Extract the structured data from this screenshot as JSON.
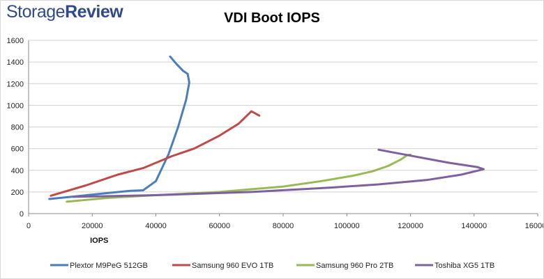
{
  "brand": {
    "name_regular": "Storage",
    "name_bold": "Review"
  },
  "chart_data": {
    "type": "line",
    "title": "VDI Boot IOPS",
    "xlabel": "IOPS",
    "ylabel": "",
    "xlim": [
      0,
      160000
    ],
    "ylim": [
      0,
      1600
    ],
    "x_ticks": [
      0,
      20000,
      40000,
      60000,
      80000,
      100000,
      120000,
      140000,
      160000
    ],
    "y_ticks": [
      0,
      200,
      400,
      600,
      800,
      1000,
      1200,
      1400,
      1600
    ],
    "grid": "horizontal",
    "legend": "bottom",
    "series": [
      {
        "name": "Plextor M9PeG 512GB",
        "color": "#4a7ebb",
        "points": [
          [
            6500,
            135
          ],
          [
            15000,
            160
          ],
          [
            25000,
            190
          ],
          [
            32000,
            210
          ],
          [
            36000,
            215
          ],
          [
            40000,
            300
          ],
          [
            44000,
            550
          ],
          [
            47000,
            800
          ],
          [
            49500,
            1050
          ],
          [
            50500,
            1210
          ],
          [
            50000,
            1290
          ],
          [
            48500,
            1320
          ],
          [
            46500,
            1380
          ],
          [
            44500,
            1450
          ]
        ]
      },
      {
        "name": "Samsung 960 EVO 1TB",
        "color": "#be4b48",
        "points": [
          [
            7000,
            165
          ],
          [
            18000,
            260
          ],
          [
            28000,
            360
          ],
          [
            36000,
            420
          ],
          [
            45000,
            530
          ],
          [
            52000,
            600
          ],
          [
            60000,
            720
          ],
          [
            66000,
            830
          ],
          [
            70000,
            945
          ],
          [
            72500,
            905
          ]
        ]
      },
      {
        "name": "Samsung 960 Pro 2TB",
        "color": "#98b954",
        "points": [
          [
            12000,
            110
          ],
          [
            25000,
            145
          ],
          [
            40000,
            170
          ],
          [
            60000,
            200
          ],
          [
            80000,
            250
          ],
          [
            92000,
            300
          ],
          [
            102000,
            350
          ],
          [
            108000,
            390
          ],
          [
            113000,
            440
          ],
          [
            117000,
            500
          ],
          [
            119000,
            540
          ],
          [
            120000,
            545
          ]
        ]
      },
      {
        "name": "Toshiba XG5 1TB",
        "color": "#7d60a0",
        "points": [
          [
            14000,
            155
          ],
          [
            40000,
            170
          ],
          [
            70000,
            200
          ],
          [
            95000,
            240
          ],
          [
            110000,
            270
          ],
          [
            125000,
            310
          ],
          [
            136000,
            360
          ],
          [
            143000,
            410
          ],
          [
            141000,
            430
          ],
          [
            132000,
            470
          ],
          [
            120000,
            535
          ],
          [
            110000,
            590
          ]
        ]
      }
    ]
  }
}
